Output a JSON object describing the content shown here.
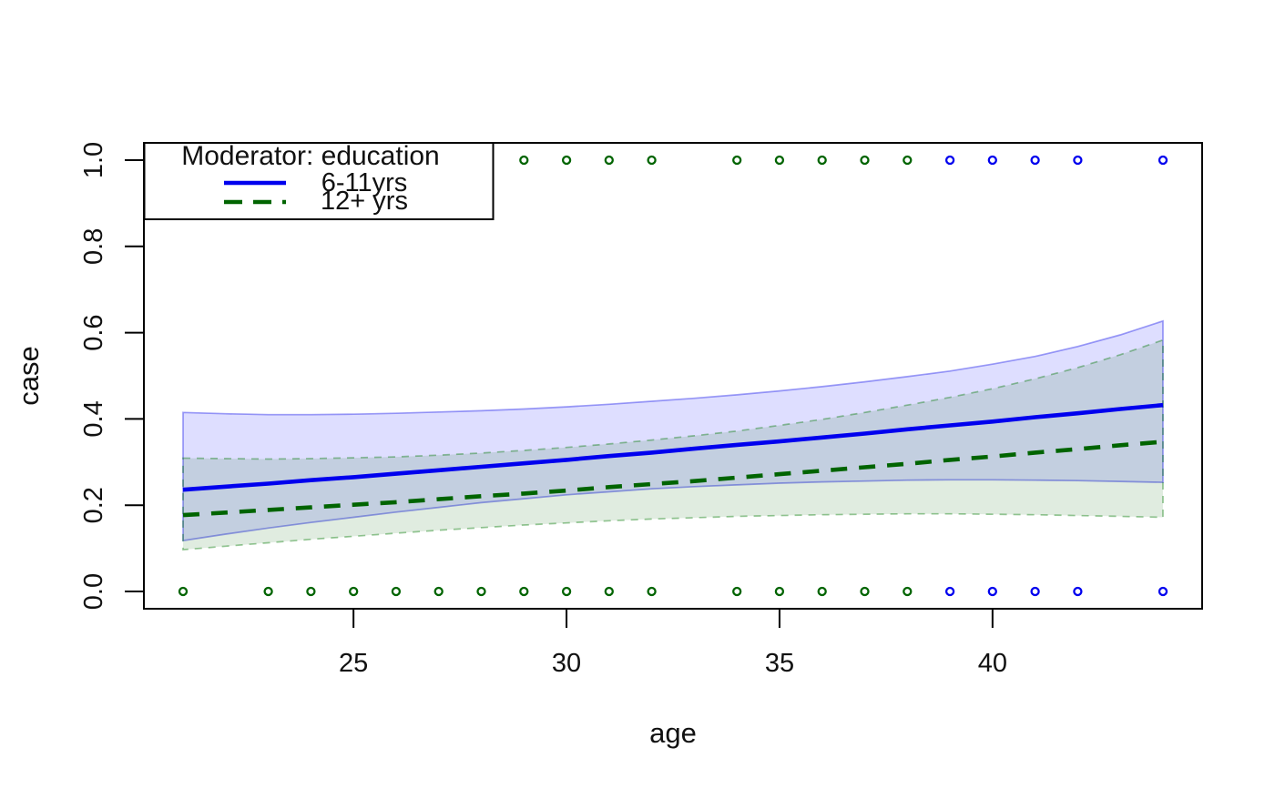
{
  "figure": {
    "background": "#ffffff"
  },
  "chart_data": {
    "type": "line",
    "title": "",
    "xlabel": "age",
    "ylabel": "case",
    "xlim": [
      20.08,
      44.92
    ],
    "ylim": [
      -0.04,
      1.04
    ],
    "grid": false,
    "xticks": {
      "values": [
        25,
        30,
        35,
        40
      ],
      "labels": [
        "25",
        "30",
        "35",
        "40"
      ]
    },
    "yticks": {
      "values": [
        0.0,
        0.2,
        0.4,
        0.6,
        0.8,
        1.0
      ],
      "labels": [
        "0.0",
        "0.2",
        "0.4",
        "0.6",
        "0.8",
        "1.0"
      ]
    },
    "legend": {
      "title": "Moderator: education",
      "position": "top-left",
      "entries": [
        {
          "label": "6-11yrs",
          "color": "#0000ee",
          "style": "solid"
        },
        {
          "label": "12+ yrs",
          "color": "#006400",
          "style": "dashed"
        }
      ]
    },
    "x": [
      21,
      22,
      23,
      24,
      25,
      26,
      27,
      28,
      29,
      30,
      31,
      32,
      33,
      34,
      35,
      36,
      37,
      38,
      39,
      40,
      41,
      42,
      43,
      44
    ],
    "series": [
      {
        "name": "6-11yrs",
        "color": "#0000ee",
        "style": "solid",
        "band_fill": "rgba(0,0,255,0.13)",
        "band_edge": "rgba(40,40,235,0.45)",
        "band_edge_style": "solid",
        "values": [
          0.236,
          0.243,
          0.25,
          0.258,
          0.265,
          0.273,
          0.281,
          0.289,
          0.297,
          0.305,
          0.314,
          0.322,
          0.331,
          0.34,
          0.348,
          0.357,
          0.366,
          0.376,
          0.385,
          0.394,
          0.404,
          0.413,
          0.423,
          0.432
        ],
        "ci_upper": [
          0.415,
          0.412,
          0.41,
          0.41,
          0.411,
          0.413,
          0.416,
          0.419,
          0.423,
          0.428,
          0.434,
          0.441,
          0.448,
          0.456,
          0.465,
          0.475,
          0.486,
          0.498,
          0.511,
          0.527,
          0.545,
          0.568,
          0.595,
          0.627
        ],
        "ci_lower": [
          0.118,
          0.133,
          0.147,
          0.16,
          0.172,
          0.184,
          0.195,
          0.206,
          0.215,
          0.224,
          0.231,
          0.238,
          0.243,
          0.247,
          0.251,
          0.254,
          0.256,
          0.258,
          0.259,
          0.259,
          0.258,
          0.257,
          0.255,
          0.253
        ]
      },
      {
        "name": "12+ yrs",
        "color": "#006400",
        "style": "dashed",
        "band_fill": "rgba(0,100,0,0.12)",
        "band_edge": "rgba(0,120,0,0.40)",
        "band_edge_style": "dashed",
        "values": [
          0.177,
          0.183,
          0.189,
          0.195,
          0.201,
          0.207,
          0.214,
          0.221,
          0.227,
          0.234,
          0.242,
          0.249,
          0.256,
          0.264,
          0.272,
          0.28,
          0.288,
          0.296,
          0.305,
          0.313,
          0.322,
          0.33,
          0.339,
          0.347
        ],
        "ci_upper": [
          0.309,
          0.308,
          0.307,
          0.308,
          0.31,
          0.312,
          0.316,
          0.321,
          0.327,
          0.334,
          0.342,
          0.351,
          0.361,
          0.372,
          0.385,
          0.399,
          0.415,
          0.432,
          0.45,
          0.47,
          0.493,
          0.519,
          0.549,
          0.583
        ],
        "ci_lower": [
          0.097,
          0.105,
          0.113,
          0.121,
          0.128,
          0.135,
          0.142,
          0.148,
          0.154,
          0.159,
          0.164,
          0.168,
          0.171,
          0.174,
          0.176,
          0.178,
          0.179,
          0.18,
          0.18,
          0.179,
          0.178,
          0.176,
          0.174,
          0.172
        ]
      }
    ],
    "scatter_points": {
      "marker": "open-circle",
      "top_row_y": 1.0,
      "bottom_row_y": 0.0,
      "top_green_ages": [
        29,
        30,
        31,
        32,
        34,
        35,
        36,
        37,
        38
      ],
      "top_blue_ages": [
        39,
        40,
        41,
        42,
        44
      ],
      "bottom_green_ages": [
        21,
        23,
        24,
        25,
        26,
        27,
        28,
        29,
        30,
        31,
        32,
        34,
        35,
        36,
        37,
        38
      ],
      "bottom_blue_ages": [
        39,
        40,
        41,
        42,
        44
      ],
      "green": "#006400",
      "blue": "#0000ee"
    },
    "colors": {
      "axis": "#000000",
      "text": "#111111",
      "legend_bg": "#ffffff"
    }
  }
}
